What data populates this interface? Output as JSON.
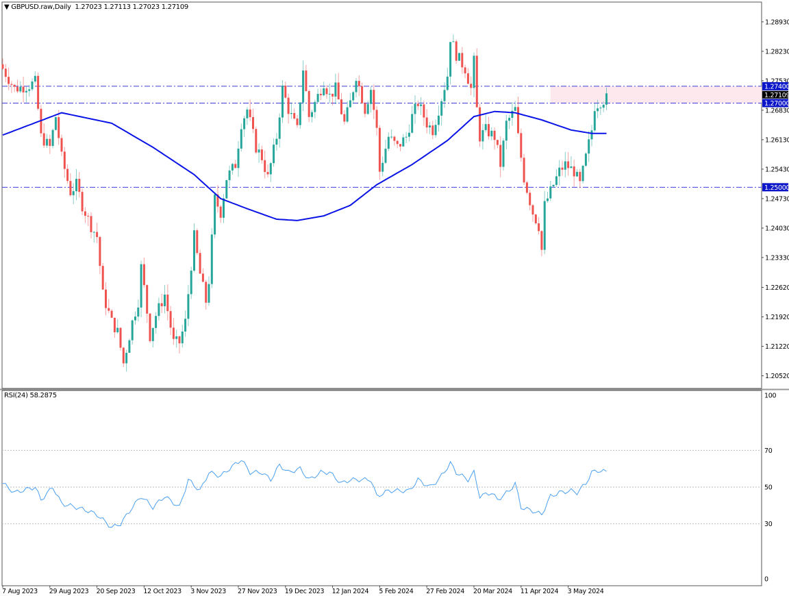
{
  "header": {
    "symbol": "GBPUSD.raw,Daily",
    "ohlc": "1.27023 1.27113 1.27023 1.27109"
  },
  "rsi_header": {
    "label": "RSI(24) 58.2875"
  },
  "colors": {
    "bull": "#26a69a",
    "bear": "#ef5350",
    "ma": "#0a14e6",
    "level": "#3c3cdc",
    "zone": "#fde8ee",
    "rsi": "#4aa0f0",
    "badge": "#0a14c8"
  },
  "chart_data": [
    {
      "type": "candlestick",
      "title": "GBPUSD.raw,Daily",
      "ylim": [
        1.2022,
        1.294
      ],
      "bars": 206,
      "yticks": [
        "1.28930",
        "1.28230",
        "1.27530",
        "1.26830",
        "1.26130",
        "1.25430",
        "1.24730",
        "1.24030",
        "1.23330",
        "1.22620",
        "1.21920",
        "1.21220",
        "1.20520"
      ],
      "xticks": [
        {
          "bar": 0,
          "label": "7 Aug 2023"
        },
        {
          "bar": 16,
          "label": "29 Aug 2023"
        },
        {
          "bar": 32,
          "label": "20 Sep 2023"
        },
        {
          "bar": 48,
          "label": "12 Oct 2023"
        },
        {
          "bar": 64,
          "label": "3 Nov 2023"
        },
        {
          "bar": 80,
          "label": "27 Nov 2023"
        },
        {
          "bar": 96,
          "label": "19 Dec 2023"
        },
        {
          "bar": 112,
          "label": "12 Jan 2024"
        },
        {
          "bar": 128,
          "label": "5 Feb 2024"
        },
        {
          "bar": 144,
          "label": "27 Feb 2024"
        },
        {
          "bar": 160,
          "label": "20 Mar 2024"
        },
        {
          "bar": 176,
          "label": "11 Apr 2024"
        },
        {
          "bar": 192,
          "label": "3 May 2024"
        }
      ],
      "close_keypoints": [
        [
          0,
          1.2782
        ],
        [
          4,
          1.2734
        ],
        [
          9,
          1.2742
        ],
        [
          11,
          1.275
        ],
        [
          13,
          1.262
        ],
        [
          16,
          1.2595
        ],
        [
          18,
          1.2668
        ],
        [
          20,
          1.2571
        ],
        [
          23,
          1.2489
        ],
        [
          25,
          1.2506
        ],
        [
          27,
          1.2457
        ],
        [
          30,
          1.2408
        ],
        [
          32,
          1.2383
        ],
        [
          34,
          1.2245
        ],
        [
          37,
          1.218
        ],
        [
          39,
          1.2156
        ],
        [
          41,
          1.2082
        ],
        [
          44,
          1.218
        ],
        [
          46,
          1.2229
        ],
        [
          47,
          1.231
        ],
        [
          48,
          1.2261
        ],
        [
          50,
          1.2147
        ],
        [
          52,
          1.2196
        ],
        [
          55,
          1.2245
        ],
        [
          58,
          1.2131
        ],
        [
          60,
          1.2131
        ],
        [
          62,
          1.218
        ],
        [
          65,
          1.2383
        ],
        [
          67,
          1.2294
        ],
        [
          69,
          1.2229
        ],
        [
          70,
          1.2278
        ],
        [
          72,
          1.2473
        ],
        [
          74,
          1.244
        ],
        [
          76,
          1.2522
        ],
        [
          79,
          1.2554
        ],
        [
          81,
          1.2652
        ],
        [
          83,
          1.2685
        ],
        [
          86,
          1.2595
        ],
        [
          88,
          1.2571
        ],
        [
          90,
          1.2522
        ],
        [
          93,
          1.262
        ],
        [
          95,
          1.2734
        ],
        [
          97,
          1.2685
        ],
        [
          100,
          1.2636
        ],
        [
          102,
          1.2782
        ],
        [
          104,
          1.2668
        ],
        [
          107,
          1.2717
        ],
        [
          109,
          1.275
        ],
        [
          111,
          1.2717
        ],
        [
          113,
          1.2734
        ],
        [
          116,
          1.2652
        ],
        [
          118,
          1.2701
        ],
        [
          120,
          1.2766
        ],
        [
          123,
          1.2685
        ],
        [
          125,
          1.2734
        ],
        [
          127,
          1.2636
        ],
        [
          128,
          1.2538
        ],
        [
          131,
          1.262
        ],
        [
          134,
          1.2595
        ],
        [
          137,
          1.262
        ],
        [
          139,
          1.2668
        ],
        [
          141,
          1.2701
        ],
        [
          144,
          1.2652
        ],
        [
          146,
          1.2636
        ],
        [
          148,
          1.2685
        ],
        [
          151,
          1.2766
        ],
        [
          152,
          1.2856
        ],
        [
          154,
          1.2815
        ],
        [
          157,
          1.2782
        ],
        [
          159,
          1.2734
        ],
        [
          160,
          1.2799
        ],
        [
          161,
          1.2685
        ],
        [
          162,
          1.262
        ],
        [
          164,
          1.2636
        ],
        [
          167,
          1.262
        ],
        [
          169,
          1.2554
        ],
        [
          171,
          1.2652
        ],
        [
          174,
          1.2685
        ],
        [
          175,
          1.262
        ],
        [
          177,
          1.2522
        ],
        [
          180,
          1.244
        ],
        [
          182,
          1.2408
        ],
        [
          183,
          1.2351
        ],
        [
          184,
          1.2457
        ],
        [
          187,
          1.2506
        ],
        [
          189,
          1.2538
        ],
        [
          191,
          1.2554
        ],
        [
          194,
          1.2538
        ],
        [
          196,
          1.2506
        ],
        [
          198,
          1.2571
        ],
        [
          200,
          1.2636
        ],
        [
          201,
          1.2693
        ],
        [
          203,
          1.2704
        ],
        [
          205,
          1.2711
        ]
      ],
      "ma_keypoints": [
        [
          0,
          1.2624
        ],
        [
          20,
          1.2677
        ],
        [
          37,
          1.2652
        ],
        [
          51,
          1.2595
        ],
        [
          65,
          1.253
        ],
        [
          74,
          1.2473
        ],
        [
          83,
          1.2449
        ],
        [
          93,
          1.2424
        ],
        [
          100,
          1.2421
        ],
        [
          109,
          1.2432
        ],
        [
          118,
          1.2457
        ],
        [
          127,
          1.2506
        ],
        [
          139,
          1.2554
        ],
        [
          151,
          1.2611
        ],
        [
          160,
          1.2668
        ],
        [
          167,
          1.268
        ],
        [
          174,
          1.2677
        ],
        [
          183,
          1.266
        ],
        [
          193,
          1.2636
        ],
        [
          200,
          1.2628
        ],
        [
          205,
          1.2628
        ]
      ],
      "levels": [
        {
          "price": 1.274,
          "label": "1.27400"
        },
        {
          "price": 1.27,
          "label": "1.27000"
        },
        {
          "price": 1.25,
          "label": "1.25000"
        }
      ],
      "zone": {
        "from_bar": 186,
        "top": 1.274,
        "bottom": 1.27
      },
      "current_price": {
        "price": 1.27109,
        "label": "1.27109"
      }
    },
    {
      "type": "line",
      "title": "RSI(24) 58.2875",
      "ylim": [
        -3.7,
        102.6
      ],
      "levels": [
        70,
        50,
        30
      ],
      "yticks": [
        "100",
        "70",
        "50",
        "30",
        "0"
      ],
      "keypoints": [
        [
          0,
          52
        ],
        [
          4,
          47
        ],
        [
          11,
          50
        ],
        [
          13,
          43
        ],
        [
          17,
          50
        ],
        [
          20,
          41
        ],
        [
          25,
          39
        ],
        [
          29,
          37
        ],
        [
          32,
          35
        ],
        [
          37,
          28
        ],
        [
          40,
          30
        ],
        [
          44,
          39
        ],
        [
          47,
          45
        ],
        [
          51,
          39
        ],
        [
          55,
          45
        ],
        [
          60,
          39
        ],
        [
          63,
          54
        ],
        [
          67,
          48
        ],
        [
          70,
          58
        ],
        [
          74,
          56
        ],
        [
          77,
          60
        ],
        [
          81,
          65
        ],
        [
          84,
          58
        ],
        [
          88,
          58
        ],
        [
          91,
          54
        ],
        [
          94,
          62
        ],
        [
          97,
          58
        ],
        [
          101,
          60
        ],
        [
          104,
          54
        ],
        [
          108,
          58
        ],
        [
          111,
          58
        ],
        [
          115,
          52
        ],
        [
          118,
          54
        ],
        [
          122,
          54
        ],
        [
          125,
          54
        ],
        [
          127,
          45
        ],
        [
          131,
          48
        ],
        [
          134,
          48
        ],
        [
          138,
          48
        ],
        [
          141,
          54
        ],
        [
          145,
          50
        ],
        [
          148,
          54
        ],
        [
          152,
          63
        ],
        [
          154,
          58
        ],
        [
          158,
          54
        ],
        [
          160,
          58
        ],
        [
          162,
          45
        ],
        [
          166,
          47
        ],
        [
          168,
          43
        ],
        [
          172,
          48
        ],
        [
          174,
          52
        ],
        [
          176,
          39
        ],
        [
          180,
          37
        ],
        [
          183,
          35
        ],
        [
          186,
          45
        ],
        [
          189,
          47
        ],
        [
          193,
          48
        ],
        [
          195,
          47
        ],
        [
          198,
          52
        ],
        [
          200,
          58
        ],
        [
          202,
          59
        ],
        [
          205,
          58.3
        ]
      ]
    }
  ]
}
